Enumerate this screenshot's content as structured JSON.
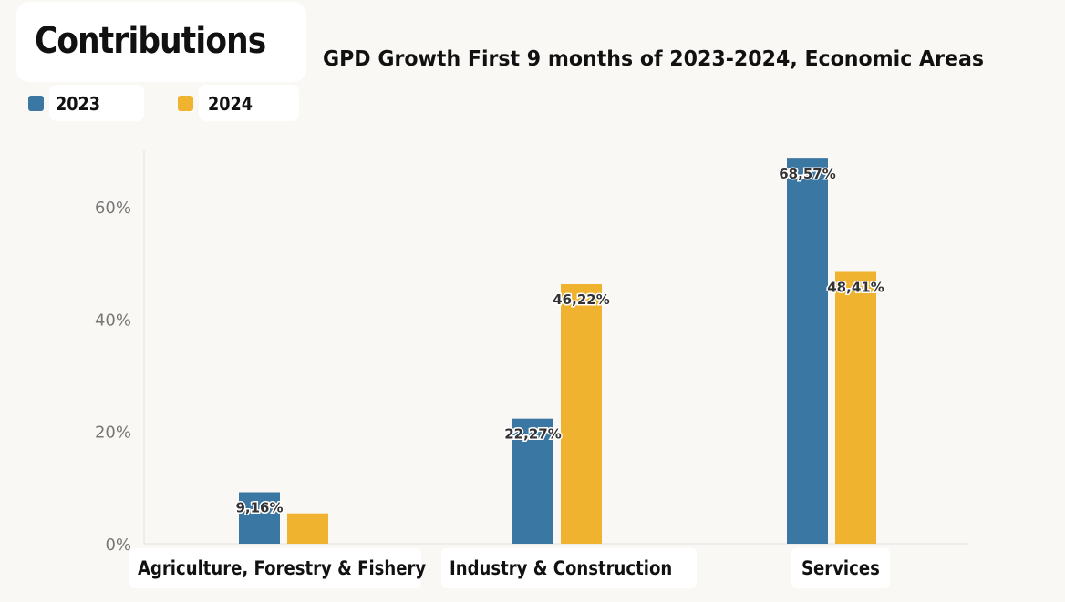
{
  "header": {
    "title": "Contributions",
    "subtitle": "GPD Growth First 9 months of 2023-2024, Economic Areas"
  },
  "colors": {
    "series_2023": "#3a77a2",
    "series_2024": "#f0b330",
    "background": "#faf8f4"
  },
  "chart_data": {
    "type": "bar",
    "categories": [
      "Agriculture, Forestry & Fishery",
      "Industry & Construction",
      "Services"
    ],
    "series": [
      {
        "name": "2023",
        "values": [
          9.16,
          22.27,
          68.57
        ],
        "labels": [
          "9,16%",
          "22,27%",
          "68,57%"
        ]
      },
      {
        "name": "2024",
        "values": [
          5.4,
          46.22,
          48.41
        ],
        "labels": [
          "",
          "46,22%",
          "48,41%"
        ]
      }
    ],
    "yticks": [
      0,
      20,
      40,
      60
    ],
    "ytick_labels": [
      "0%",
      "20%",
      "40%",
      "60%"
    ],
    "ylim": [
      0,
      70
    ],
    "legend": "top-left",
    "grid": false
  }
}
